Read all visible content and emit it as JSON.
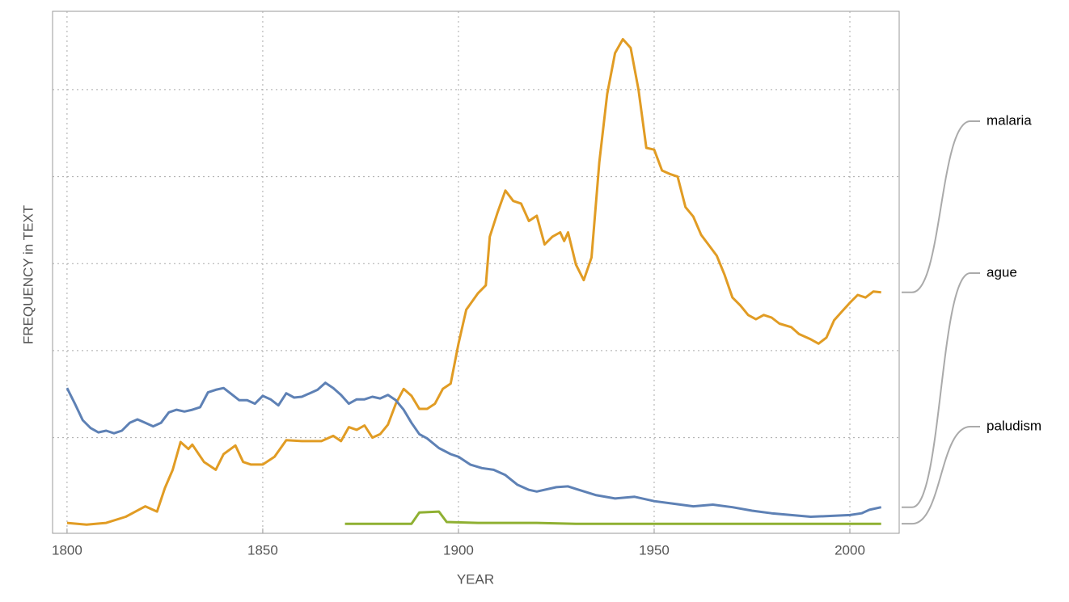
{
  "chart_data": {
    "type": "line",
    "xlabel": "YEAR",
    "ylabel": "FREQUENCY in TEXT",
    "xlim": [
      1796.3,
      2012.6
    ],
    "xticks": [
      1800,
      1850,
      1900,
      1950,
      2000
    ],
    "ylim": [
      -0.1,
      5.9
    ],
    "ygrid": [
      1,
      2,
      3,
      4,
      5
    ],
    "grid": true,
    "series": [
      {
        "name": "malaria",
        "color": "#e19c24",
        "x": [
          1800,
          1805,
          1810,
          1815,
          1820,
          1823,
          1825,
          1827,
          1829,
          1831,
          1832,
          1835,
          1838,
          1840,
          1843,
          1845,
          1847,
          1850,
          1853,
          1856,
          1860,
          1865,
          1868,
          1870,
          1872,
          1874,
          1876,
          1878,
          1880,
          1882,
          1884,
          1886,
          1888,
          1890,
          1892,
          1894,
          1896,
          1898,
          1900,
          1902,
          1905,
          1907,
          1908,
          1910,
          1912,
          1914,
          1916,
          1918,
          1920,
          1922,
          1924,
          1926,
          1927,
          1928,
          1930,
          1932,
          1934,
          1936,
          1938,
          1940,
          1942,
          1944,
          1946,
          1948,
          1950,
          1952,
          1954,
          1956,
          1958,
          1960,
          1962,
          1964,
          1966,
          1968,
          1970,
          1972,
          1974,
          1976,
          1978,
          1980,
          1982,
          1985,
          1987,
          1990,
          1992,
          1994,
          1996,
          1998,
          2000,
          2002,
          2004,
          2006,
          2008
        ],
        "values": [
          0.02,
          0,
          0.02,
          0.09,
          0.21,
          0.15,
          0.42,
          0.63,
          0.95,
          0.87,
          0.92,
          0.72,
          0.63,
          0.81,
          0.91,
          0.72,
          0.69,
          0.69,
          0.78,
          0.97,
          0.96,
          0.96,
          1.02,
          0.96,
          1.12,
          1.09,
          1.14,
          1.0,
          1.04,
          1.15,
          1.39,
          1.56,
          1.48,
          1.33,
          1.33,
          1.39,
          1.56,
          1.62,
          2.08,
          2.47,
          2.66,
          2.75,
          3.31,
          3.59,
          3.84,
          3.72,
          3.69,
          3.49,
          3.55,
          3.22,
          3.31,
          3.36,
          3.26,
          3.36,
          2.99,
          2.81,
          3.07,
          4.17,
          4.95,
          5.42,
          5.58,
          5.48,
          5.0,
          4.33,
          4.31,
          4.07,
          4.03,
          4.0,
          3.65,
          3.54,
          3.33,
          3.21,
          3.09,
          2.87,
          2.61,
          2.52,
          2.41,
          2.36,
          2.41,
          2.38,
          2.31,
          2.27,
          2.19,
          2.13,
          2.08,
          2.15,
          2.35,
          2.45,
          2.55,
          2.64,
          2.61,
          2.68,
          2.67
        ]
      },
      {
        "name": "ague",
        "color": "#5e81b5",
        "x": [
          1800,
          1802,
          1804,
          1806,
          1808,
          1810,
          1812,
          1814,
          1816,
          1818,
          1820,
          1822,
          1824,
          1826,
          1828,
          1830,
          1832,
          1834,
          1836,
          1838,
          1840,
          1842,
          1844,
          1846,
          1848,
          1850,
          1852,
          1854,
          1856,
          1858,
          1860,
          1862,
          1864,
          1866,
          1868,
          1870,
          1872,
          1874,
          1876,
          1878,
          1880,
          1882,
          1884,
          1886,
          1888,
          1890,
          1892,
          1895,
          1898,
          1900,
          1903,
          1906,
          1909,
          1912,
          1915,
          1918,
          1920,
          1925,
          1928,
          1930,
          1935,
          1940,
          1945,
          1950,
          1955,
          1960,
          1965,
          1970,
          1975,
          1980,
          1985,
          1990,
          1995,
          2000,
          2003,
          2005,
          2008
        ],
        "values": [
          1.57,
          1.39,
          1.2,
          1.11,
          1.06,
          1.08,
          1.05,
          1.08,
          1.17,
          1.21,
          1.17,
          1.13,
          1.17,
          1.29,
          1.32,
          1.3,
          1.32,
          1.35,
          1.52,
          1.55,
          1.57,
          1.5,
          1.43,
          1.43,
          1.39,
          1.48,
          1.44,
          1.37,
          1.51,
          1.46,
          1.47,
          1.51,
          1.55,
          1.63,
          1.57,
          1.49,
          1.39,
          1.44,
          1.44,
          1.47,
          1.45,
          1.49,
          1.43,
          1.32,
          1.17,
          1.04,
          0.99,
          0.88,
          0.81,
          0.78,
          0.69,
          0.65,
          0.63,
          0.57,
          0.46,
          0.4,
          0.38,
          0.43,
          0.44,
          0.41,
          0.34,
          0.3,
          0.32,
          0.27,
          0.24,
          0.21,
          0.23,
          0.2,
          0.16,
          0.13,
          0.11,
          0.09,
          0.1,
          0.11,
          0.13,
          0.17,
          0.2
        ]
      },
      {
        "name": "paludism",
        "color": "#8fb032",
        "x": [
          1871,
          1888,
          1890,
          1895,
          1897,
          1905,
          1920,
          1930,
          2008
        ],
        "values": [
          0.01,
          0.01,
          0.14,
          0.15,
          0.03,
          0.02,
          0.02,
          0.01,
          0.01
        ]
      }
    ]
  }
}
